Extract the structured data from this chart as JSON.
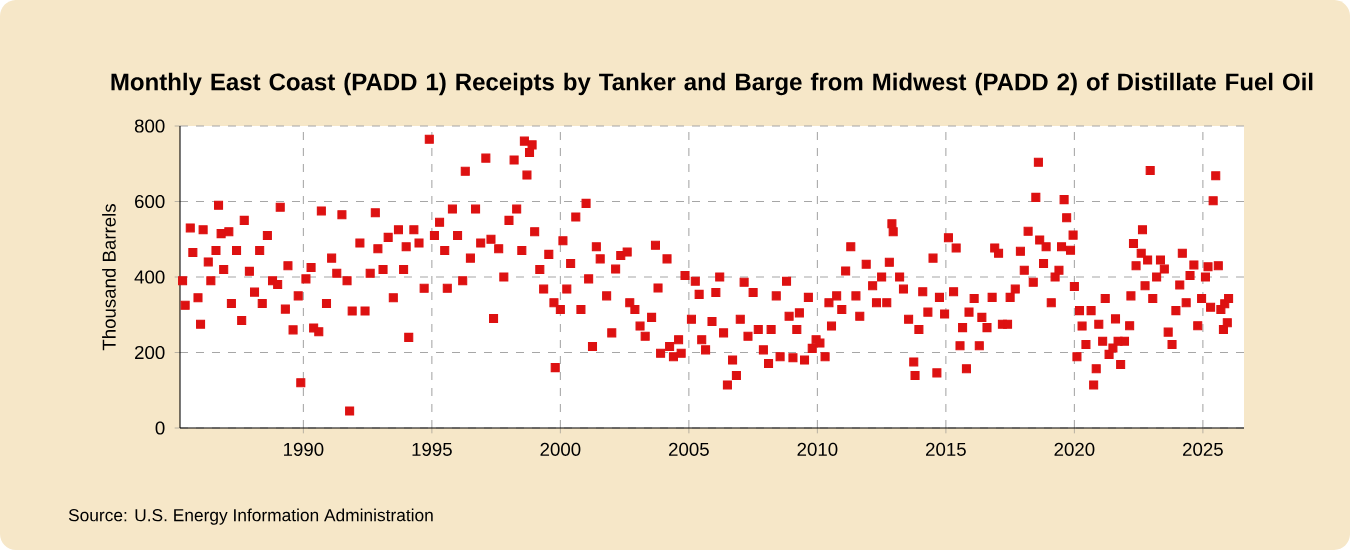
{
  "chart_data": {
    "type": "scatter",
    "title": "Monthly East Coast (PADD 1) Receipts by Tanker and Barge from Midwest (PADD 2) of Distillate Fuel Oil",
    "ylabel": "Thousand Barrels",
    "annotations": [
      "Source: U.S. Energy Information Administration"
    ],
    "xlim": [
      1985.2,
      2026.6
    ],
    "xticks": [
      1990,
      1995,
      2000,
      2005,
      2010,
      2015,
      2020,
      2025
    ],
    "ylim": [
      0,
      800
    ],
    "yticks": [
      0,
      200,
      400,
      600,
      800
    ],
    "grid": true,
    "marker": "square",
    "series": [
      {
        "color": "#dd1111",
        "x": [
          1985.3,
          1985.4,
          1985.6,
          1985.7,
          1985.9,
          1986.0,
          1986.1,
          1986.3,
          1986.4,
          1986.6,
          1986.7,
          1986.8,
          1986.9,
          1987.1,
          1987.2,
          1987.4,
          1987.6,
          1987.7,
          1987.9,
          1988.1,
          1988.3,
          1988.4,
          1988.6,
          1988.8,
          1989.0,
          1989.1,
          1989.3,
          1989.4,
          1989.6,
          1989.8,
          1989.9,
          1990.1,
          1990.3,
          1990.4,
          1990.6,
          1990.7,
          1990.9,
          1991.1,
          1991.3,
          1991.5,
          1991.7,
          1991.8,
          1991.9,
          1992.2,
          1992.4,
          1992.6,
          1992.8,
          1992.9,
          1993.1,
          1993.3,
          1993.5,
          1993.7,
          1993.9,
          1994.0,
          1994.1,
          1994.3,
          1994.5,
          1994.7,
          1994.9,
          1995.1,
          1995.3,
          1995.5,
          1995.6,
          1995.8,
          1996.0,
          1996.2,
          1996.3,
          1996.5,
          1996.7,
          1996.9,
          1997.1,
          1997.3,
          1997.4,
          1997.6,
          1997.8,
          1998.0,
          1998.2,
          1998.3,
          1998.5,
          1998.6,
          1998.7,
          1998.8,
          1998.9,
          1999.0,
          1999.2,
          1999.35,
          1999.55,
          1999.75,
          1999.8,
          2000.0,
          2000.1,
          2000.25,
          2000.4,
          2000.6,
          2000.8,
          2001.0,
          2001.1,
          2001.25,
          2001.4,
          2001.55,
          2001.8,
          2002.0,
          2002.15,
          2002.35,
          2002.6,
          2002.7,
          2002.9,
          2003.1,
          2003.3,
          2003.55,
          2003.7,
          2003.8,
          2003.9,
          2004.15,
          2004.25,
          2004.4,
          2004.6,
          2004.7,
          2004.85,
          2005.1,
          2005.25,
          2005.4,
          2005.5,
          2005.65,
          2005.9,
          2006.05,
          2006.2,
          2006.35,
          2006.5,
          2006.7,
          2006.85,
          2007.0,
          2007.15,
          2007.3,
          2007.5,
          2007.7,
          2007.9,
          2008.1,
          2008.2,
          2008.4,
          2008.55,
          2008.8,
          2008.9,
          2009.05,
          2009.2,
          2009.3,
          2009.5,
          2009.65,
          2009.8,
          2009.95,
          2010.1,
          2010.3,
          2010.45,
          2010.55,
          2010.75,
          2010.95,
          2011.1,
          2011.3,
          2011.5,
          2011.65,
          2011.9,
          2012.15,
          2012.3,
          2012.5,
          2012.7,
          2012.8,
          2012.9,
          2012.95,
          2013.2,
          2013.35,
          2013.55,
          2013.75,
          2013.8,
          2013.95,
          2014.1,
          2014.3,
          2014.5,
          2014.65,
          2014.75,
          2014.95,
          2015.1,
          2015.3,
          2015.4,
          2015.55,
          2015.65,
          2015.8,
          2015.9,
          2016.1,
          2016.3,
          2016.4,
          2016.6,
          2016.8,
          2016.9,
          2017.05,
          2017.2,
          2017.4,
          2017.5,
          2017.7,
          2017.9,
          2018.05,
          2018.2,
          2018.4,
          2018.5,
          2018.6,
          2018.65,
          2018.8,
          2018.9,
          2019.1,
          2019.25,
          2019.4,
          2019.5,
          2019.6,
          2019.7,
          2019.85,
          2019.95,
          2020.0,
          2020.1,
          2020.2,
          2020.3,
          2020.45,
          2020.65,
          2020.75,
          2020.85,
          2020.95,
          2021.1,
          2021.2,
          2021.35,
          2021.5,
          2021.6,
          2021.7,
          2021.8,
          2021.95,
          2022.15,
          2022.2,
          2022.3,
          2022.4,
          2022.6,
          2022.65,
          2022.75,
          2022.85,
          2022.95,
          2023.05,
          2023.2,
          2023.35,
          2023.5,
          2023.65,
          2023.8,
          2023.95,
          2024.1,
          2024.2,
          2024.35,
          2024.5,
          2024.65,
          2024.8,
          2024.95,
          2025.1,
          2025.2,
          2025.3,
          2025.4,
          2025.5,
          2025.6,
          2025.7,
          2025.8,
          2025.85,
          2025.95,
          2026.0
        ],
        "values": [
          390,
          325,
          530,
          465,
          345,
          275,
          525,
          440,
          390,
          470,
          590,
          515,
          420,
          520,
          330,
          470,
          285,
          550,
          415,
          360,
          470,
          330,
          510,
          390,
          380,
          585,
          315,
          430,
          260,
          350,
          120,
          395,
          425,
          265,
          255,
          575,
          330,
          450,
          410,
          565,
          390,
          45,
          310,
          490,
          310,
          410,
          570,
          475,
          420,
          505,
          345,
          525,
          420,
          480,
          240,
          525,
          490,
          370,
          765,
          510,
          545,
          470,
          370,
          580,
          510,
          390,
          680,
          450,
          580,
          490,
          715,
          500,
          290,
          475,
          400,
          550,
          710,
          580,
          470,
          760,
          670,
          730,
          750,
          520,
          420,
          368,
          460,
          332,
          160,
          314,
          496,
          368,
          436,
          559,
          314,
          595,
          395,
          216,
          480,
          448,
          350,
          252,
          421,
          457,
          466,
          332,
          314,
          270,
          243,
          293,
          484,
          371,
          198,
          448,
          216,
          189,
          234,
          198,
          404,
          288,
          389,
          354,
          234,
          207,
          282,
          359,
          400,
          252,
          114,
          180,
          139,
          288,
          386,
          243,
          359,
          261,
          207,
          171,
          261,
          350,
          189,
          389,
          296,
          186,
          261,
          305,
          180,
          346,
          211,
          234,
          225,
          189,
          332,
          270,
          350,
          314,
          416,
          480,
          350,
          296,
          434,
          377,
          332,
          400,
          332,
          439,
          541,
          520,
          400,
          368,
          288,
          175,
          139,
          261,
          361,
          307,
          450,
          146,
          346,
          302,
          504,
          361,
          477,
          218,
          266,
          157,
          307,
          343,
          218,
          293,
          266,
          346,
          477,
          463,
          275,
          275,
          346,
          368,
          468,
          418,
          521,
          386,
          611,
          704,
          498,
          436,
          480,
          332,
          400,
          418,
          480,
          605,
          557,
          471,
          511,
          375,
          189,
          311,
          270,
          221,
          311,
          114,
          157,
          275,
          230,
          343,
          195,
          212,
          289,
          230,
          168,
          230,
          271,
          350,
          489,
          430,
          463,
          525,
          377,
          445,
          682,
          343,
          400,
          445,
          421,
          254,
          221,
          311,
          379,
          463,
          332,
          404,
          432,
          271,
          343,
          400,
          427,
          320,
          602,
          668,
          430,
          314,
          261,
          329,
          279,
          343
        ]
      }
    ]
  }
}
